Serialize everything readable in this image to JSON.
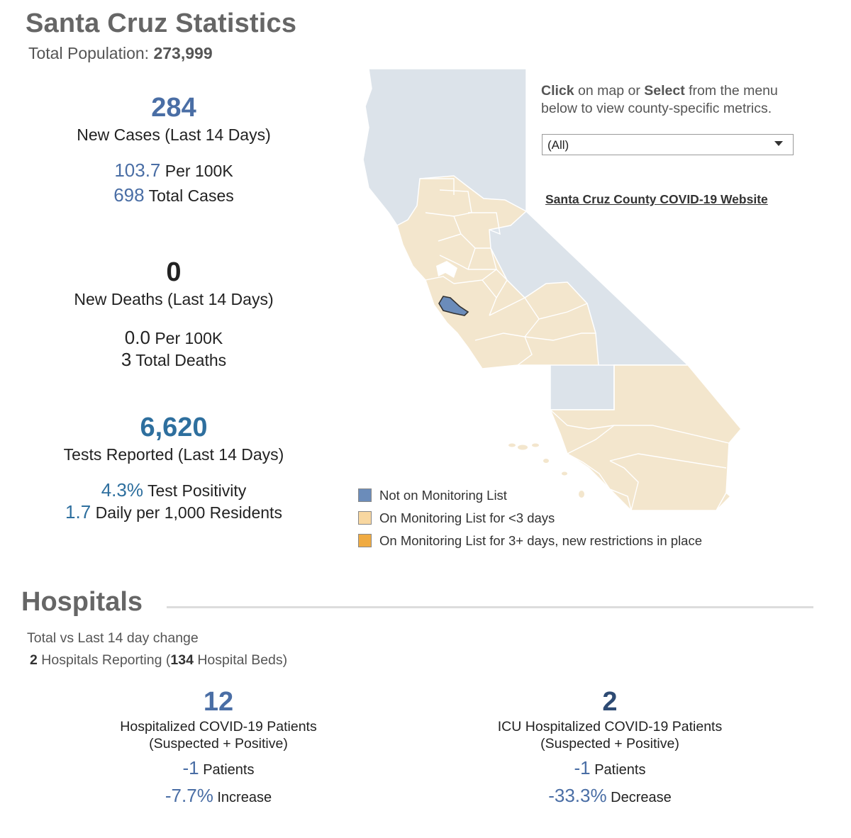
{
  "header": {
    "title": "Santa Cruz Statistics",
    "population_label": "Total Population:",
    "population_value": "273,999"
  },
  "cases": {
    "new_value": "284",
    "new_label": "New Cases (Last 14 Days)",
    "per100k_value": "103.7",
    "per100k_label": "Per 100K",
    "total_value": "698",
    "total_label": "Total Cases"
  },
  "deaths": {
    "new_value": "0",
    "new_label": "New Deaths (Last 14 Days)",
    "per100k_value": "0.0",
    "per100k_label": "Per 100K",
    "total_value": "3",
    "total_label": "Total Deaths"
  },
  "tests": {
    "reported_value": "6,620",
    "reported_label": "Tests Reported (Last 14 Days)",
    "positivity_value": "4.3%",
    "positivity_label": "Test Positivity",
    "daily_value": "1.7",
    "daily_label": "Daily per 1,000 Residents"
  },
  "map_panel": {
    "instr_click": "Click",
    "instr_mid": "on map or",
    "instr_select": "Select",
    "instr_rest": "from the menu below to view county-specific metrics.",
    "dropdown_value": "(All)",
    "county_link": "Santa Cruz County COVID-19 Website"
  },
  "legend": [
    {
      "label": "Not on Monitoring List",
      "color": "#6b8cba"
    },
    {
      "label": "On Monitoring List for <3 days",
      "color": "#f8d7a0"
    },
    {
      "label": "On Monitoring List for 3+ days, new restrictions in place",
      "color": "#f0ab42"
    }
  ],
  "map_colors": {
    "not_on_list_region": "#dce3ea",
    "monitoring_region": "#f3e6cd",
    "selected_county": "#6b8cba",
    "border": "#ffffff"
  },
  "hospitals": {
    "title": "Hospitals",
    "subtitle": "Total vs Last 14 day change",
    "reporting_count": "2",
    "reporting_mid": "Hospitals Reporting (",
    "beds_count": "134",
    "beds_suffix": "Hospital Beds)",
    "hospitalized": {
      "value": "12",
      "label1": "Hospitalized COVID-19 Patients",
      "label2": "(Suspected + Positive)",
      "patients_value": "-1",
      "patients_label": "Patients",
      "pct_value": "-7.7%",
      "pct_label": "Increase"
    },
    "icu": {
      "value": "2",
      "label1": "ICU Hospitalized COVID-19 Patients",
      "label2": "(Suspected + Positive)",
      "patients_value": "-1",
      "patients_label": "Patients",
      "pct_value": "-33.3%",
      "pct_label": "Decrease"
    }
  },
  "colors": {
    "blue_primary": "#4a6ea5",
    "blue_tests": "#2e6f9e",
    "navy_icu": "#2d4a73",
    "dark": "#222222"
  }
}
